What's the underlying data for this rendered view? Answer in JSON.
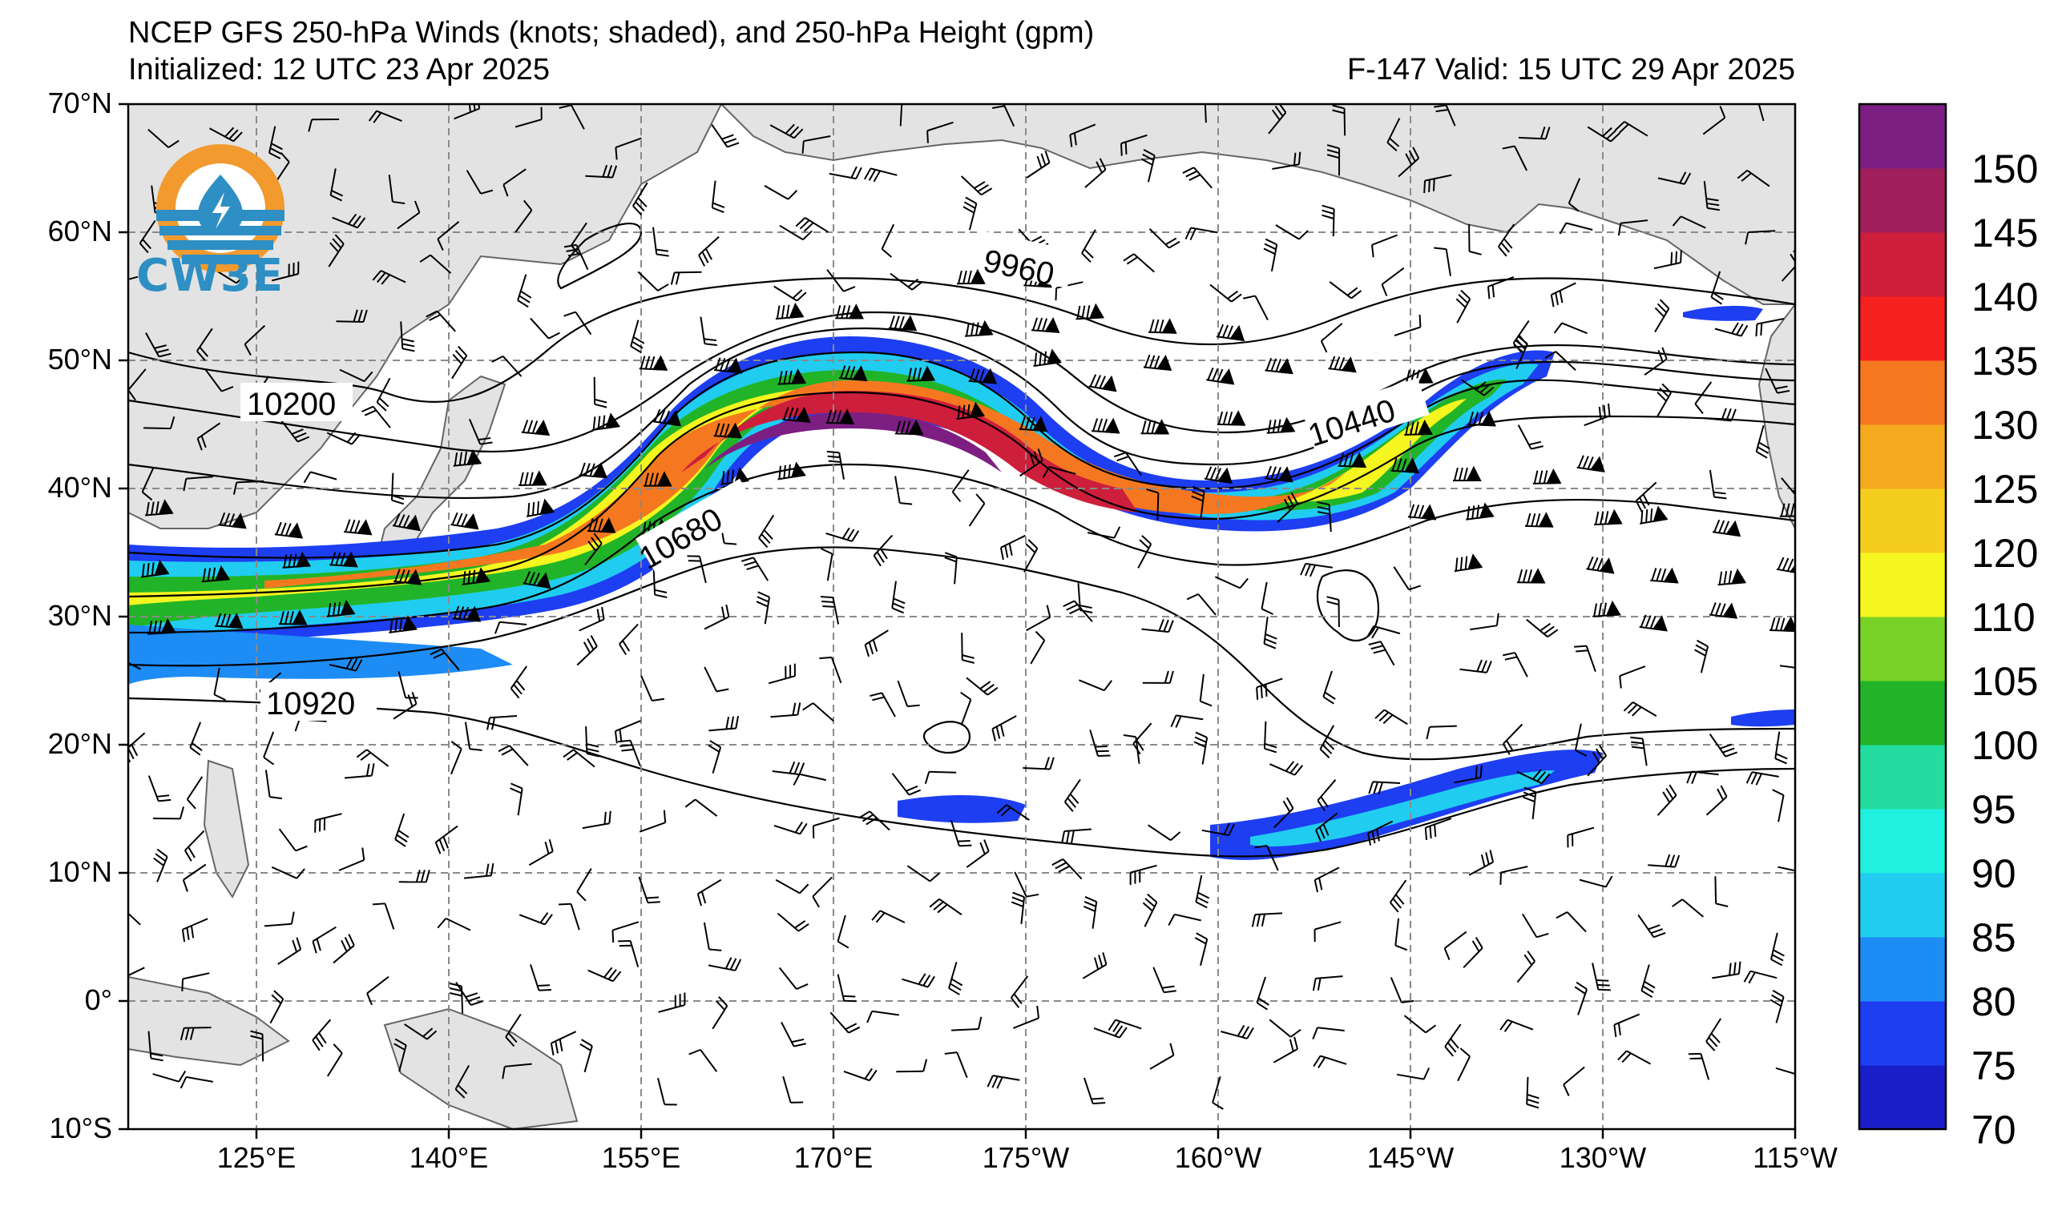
{
  "header": {
    "title": "NCEP GFS 250-hPa Winds (knots; shaded), and 250-hPa Height (gpm)",
    "initialized": "Initialized: 12 UTC 23 Apr 2025",
    "valid": "F-147  Valid: 15 UTC 29 Apr 2025"
  },
  "logo": {
    "text": "CW3E",
    "colors": {
      "orange": "#f29a2e",
      "blue": "#2e8fc4"
    }
  },
  "map": {
    "lat_labels": [
      "70°N",
      "60°N",
      "50°N",
      "40°N",
      "30°N",
      "20°N",
      "10°N",
      "0°",
      "10°S"
    ],
    "lon_labels": [
      "125°E",
      "140°E",
      "155°E",
      "170°E",
      "175°W",
      "160°W",
      "145°W",
      "130°W",
      "115°W"
    ],
    "contour_labels": [
      "9960",
      "10200",
      "10440",
      "10680",
      "10920"
    ],
    "land_color": "#e3e3e3",
    "coast_color": "#666666",
    "grid_color": "#8a8a8a"
  },
  "colorbar": {
    "labels": [
      "70",
      "75",
      "80",
      "85",
      "90",
      "95",
      "100",
      "105",
      "110",
      "120",
      "125",
      "130",
      "135",
      "140",
      "145",
      "150"
    ],
    "colors": [
      "#1a1ec8",
      "#1e3ef2",
      "#1e8cf5",
      "#20cdf0",
      "#20f0e0",
      "#22dca0",
      "#22b428",
      "#78d228",
      "#f5f520",
      "#f5cd1e",
      "#f5aa1e",
      "#f57820",
      "#f52020",
      "#cd1e3c",
      "#a01e5a",
      "#7d1e82"
    ]
  }
}
